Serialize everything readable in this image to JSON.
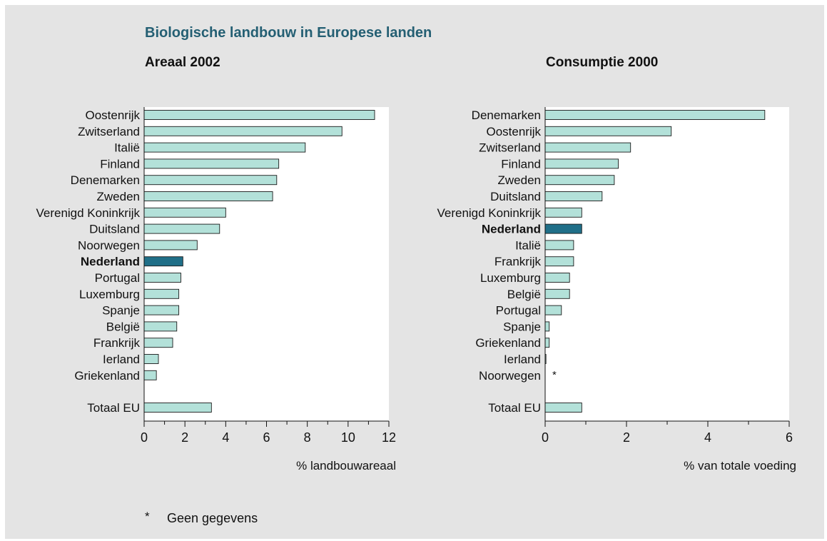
{
  "title": "Biologische landbouw in Europese landen",
  "footnote": {
    "mark": "*",
    "text": "Geen gegevens"
  },
  "colors": {
    "bar": "#b3e1d9",
    "highlight": "#206f88",
    "background": "#e4e4e4",
    "plot": "#ffffff",
    "title": "#245f73"
  },
  "chart_data": [
    {
      "type": "bar",
      "orientation": "horizontal",
      "title": "Areaal 2002",
      "xlabel": "% landbouwareaal",
      "xlim": [
        0,
        12
      ],
      "xticks": [
        "0",
        "2",
        "4",
        "6",
        "8",
        "10",
        "12"
      ],
      "categories": [
        "Oostenrijk",
        "Zwitserland",
        "Italië",
        "Finland",
        "Denemarken",
        "Zweden",
        "Verenigd Koninkrijk",
        "Duitsland",
        "Noorwegen",
        "Nederland",
        "Portugal",
        "Luxemburg",
        "Spanje",
        "België",
        "Frankrijk",
        "Ierland",
        "Griekenland",
        "Totaal EU"
      ],
      "values": [
        11.3,
        9.7,
        7.9,
        6.6,
        6.5,
        6.3,
        4.0,
        3.7,
        2.6,
        1.9,
        1.8,
        1.7,
        1.7,
        1.6,
        1.4,
        0.7,
        0.6,
        3.3
      ],
      "highlight": "Nederland",
      "grid": false
    },
    {
      "type": "bar",
      "orientation": "horizontal",
      "title": "Consumptie 2000",
      "xlabel": "% van totale voeding",
      "xlim": [
        0,
        6
      ],
      "xticks": [
        "0",
        "2",
        "4",
        "6"
      ],
      "categories": [
        "Denemarken",
        "Oostenrijk",
        "Zwitserland",
        "Finland",
        "Zweden",
        "Duitsland",
        "Verenigd Koninkrijk",
        "Nederland",
        "Italië",
        "Frankrijk",
        "Luxemburg",
        "België",
        "Portugal",
        "Spanje",
        "Griekenland",
        "Ierland",
        "Noorwegen",
        "Totaal EU"
      ],
      "values": [
        5.4,
        3.1,
        2.1,
        1.8,
        1.7,
        1.4,
        0.9,
        0.9,
        0.7,
        0.7,
        0.6,
        0.6,
        0.4,
        0.1,
        0.1,
        0.02,
        null,
        0.9
      ],
      "annotations": {
        "Noorwegen": "*"
      },
      "highlight": "Nederland",
      "grid": false
    }
  ]
}
